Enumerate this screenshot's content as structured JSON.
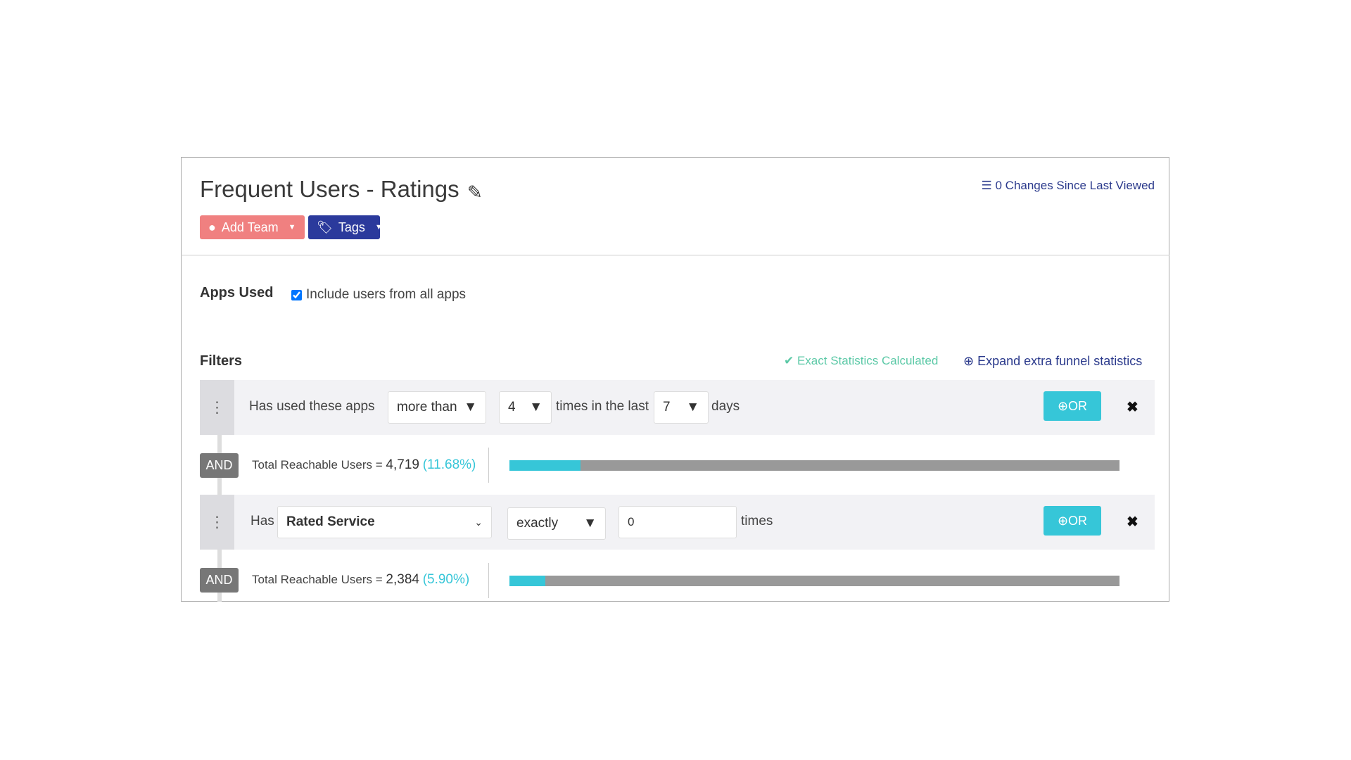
{
  "header": {
    "title": "Frequent Users - Ratings",
    "add_team": "Add Team",
    "tags": "Tags",
    "changes": "0 Changes Since Last Viewed"
  },
  "apps": {
    "label": "Apps Used",
    "checkbox_label": "Include users from all apps",
    "checked": true
  },
  "filters": {
    "label": "Filters",
    "exact": "Exact Statistics Calculated",
    "expand": "Expand extra funnel statistics",
    "rows": [
      {
        "prefix": "Has used these apps",
        "comparator": "more than",
        "count": "4",
        "mid": "times in the last",
        "period": "7",
        "suffix": "days",
        "or": "OR"
      },
      {
        "prefix": "Has",
        "event": "Rated Service",
        "comparator": "exactly",
        "count_value": "0",
        "suffix": "times",
        "or": "OR"
      }
    ],
    "totals": [
      {
        "and": "AND",
        "label": "Total Reachable Users = ",
        "count": "4,719",
        "pct": "(11.68%)",
        "fraction": 0.1168
      },
      {
        "and": "AND",
        "label": "Total Reachable Users = ",
        "count": "2,384",
        "pct": "(5.90%)",
        "fraction": 0.059
      }
    ]
  },
  "colors": {
    "add_team": "#f08080",
    "tags": "#2b3a9c",
    "accent": "#36c6d8",
    "exact": "#5cc9a7"
  }
}
